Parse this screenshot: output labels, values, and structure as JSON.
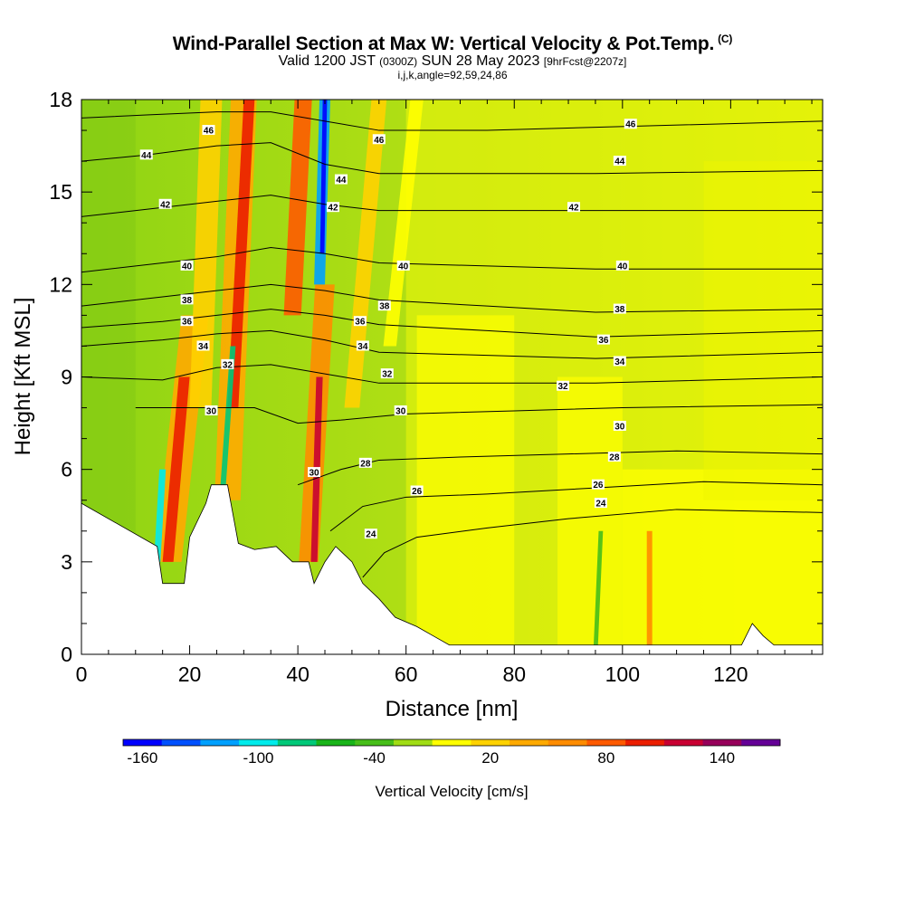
{
  "title": {
    "main": "Wind-Parallel Section at Max W: Vertical Velocity & Pot.Temp.",
    "copyright": "(C)",
    "valid_prefix": "Valid 1200 JST",
    "valid_utc": "(0300Z)",
    "valid_date": "SUN 28 May 2023",
    "forecast": "[9hrFcst@2207z]",
    "indices": "i,j,k,angle=92,59,24,86"
  },
  "chart_data": {
    "type": "heatmap",
    "xlabel": "Distance [nm]",
    "ylabel": "Height [Kft MSL]",
    "xlim": [
      0,
      137
    ],
    "ylim": [
      0,
      18
    ],
    "x_ticks": [
      "0",
      "20",
      "40",
      "60",
      "80",
      "100",
      "120"
    ],
    "y_ticks": [
      "0",
      "3",
      "6",
      "9",
      "12",
      "15",
      "18"
    ],
    "colorbar": {
      "title": "Vertical Velocity [cm/s]",
      "labels": [
        "-160",
        "-100",
        "-40",
        "20",
        "80",
        "140"
      ],
      "colors": [
        "#0000ff",
        "#0050ff",
        "#00a0ff",
        "#00ebeb",
        "#00c878",
        "#19b419",
        "#46be19",
        "#a0dc14",
        "#ffff00",
        "#ffd200",
        "#ffaa00",
        "#ff8c00",
        "#ff5a00",
        "#eb1e00",
        "#c80032",
        "#96005a",
        "#640096"
      ]
    },
    "terrain_profile": [
      [
        0,
        4.9
      ],
      [
        14,
        3.5
      ],
      [
        15,
        2.3
      ],
      [
        19,
        2.3
      ],
      [
        20,
        3.8
      ],
      [
        23,
        4.9
      ],
      [
        24,
        5.5
      ],
      [
        27,
        5.5
      ],
      [
        29,
        3.6
      ],
      [
        32,
        3.4
      ],
      [
        36,
        3.5
      ],
      [
        39,
        3.0
      ],
      [
        42,
        3.0
      ],
      [
        43,
        2.3
      ],
      [
        45,
        3.0
      ],
      [
        47,
        3.5
      ],
      [
        50,
        3.0
      ],
      [
        52,
        2.3
      ],
      [
        55,
        1.8
      ],
      [
        58,
        1.2
      ],
      [
        62,
        0.9
      ],
      [
        65,
        0.6
      ],
      [
        68,
        0.3
      ],
      [
        72,
        0.3
      ],
      [
        122,
        0.3
      ],
      [
        124,
        1.0
      ],
      [
        126,
        0.6
      ],
      [
        128,
        0.3
      ],
      [
        137,
        0.3
      ]
    ],
    "theta_contours": [
      {
        "label": "24",
        "points": [
          [
            52,
            2.5
          ],
          [
            56,
            3.3
          ],
          [
            62,
            3.8
          ],
          [
            75,
            4.1
          ],
          [
            90,
            4.4
          ],
          [
            110,
            4.7
          ],
          [
            137,
            4.6
          ]
        ]
      },
      {
        "label": "26",
        "points": [
          [
            46,
            4.0
          ],
          [
            52,
            4.8
          ],
          [
            60,
            5.1
          ],
          [
            75,
            5.2
          ],
          [
            95,
            5.4
          ],
          [
            115,
            5.6
          ],
          [
            137,
            5.5
          ]
        ]
      },
      {
        "label": "28",
        "points": [
          [
            40,
            5.5
          ],
          [
            48,
            6.0
          ],
          [
            55,
            6.3
          ],
          [
            70,
            6.4
          ],
          [
            90,
            6.5
          ],
          [
            110,
            6.6
          ],
          [
            137,
            6.5
          ]
        ]
      },
      {
        "label": "30",
        "points": [
          [
            10,
            8.0
          ],
          [
            22,
            8.0
          ],
          [
            32,
            8.0
          ],
          [
            40,
            7.5
          ],
          [
            48,
            7.6
          ],
          [
            60,
            7.8
          ],
          [
            80,
            7.9
          ],
          [
            100,
            8.0
          ],
          [
            137,
            8.1
          ]
        ]
      },
      {
        "label": "32",
        "points": [
          [
            0,
            9.0
          ],
          [
            15,
            8.9
          ],
          [
            25,
            9.3
          ],
          [
            35,
            9.4
          ],
          [
            45,
            9.1
          ],
          [
            55,
            8.8
          ],
          [
            75,
            8.8
          ],
          [
            95,
            8.8
          ],
          [
            137,
            9.0
          ]
        ]
      },
      {
        "label": "34",
        "points": [
          [
            0,
            10.0
          ],
          [
            15,
            10.2
          ],
          [
            25,
            10.4
          ],
          [
            35,
            10.5
          ],
          [
            45,
            10.2
          ],
          [
            55,
            9.8
          ],
          [
            75,
            9.7
          ],
          [
            95,
            9.6
          ],
          [
            137,
            9.8
          ]
        ]
      },
      {
        "label": "36",
        "points": [
          [
            0,
            10.6
          ],
          [
            15,
            10.8
          ],
          [
            25,
            11.0
          ],
          [
            35,
            11.2
          ],
          [
            45,
            11.0
          ],
          [
            55,
            10.7
          ],
          [
            75,
            10.5
          ],
          [
            95,
            10.3
          ],
          [
            137,
            10.5
          ]
        ]
      },
      {
        "label": "38",
        "points": [
          [
            0,
            11.3
          ],
          [
            15,
            11.6
          ],
          [
            25,
            11.8
          ],
          [
            35,
            12.0
          ],
          [
            45,
            11.8
          ],
          [
            55,
            11.5
          ],
          [
            75,
            11.3
          ],
          [
            95,
            11.1
          ],
          [
            137,
            11.2
          ]
        ]
      },
      {
        "label": "40",
        "points": [
          [
            0,
            12.4
          ],
          [
            15,
            12.7
          ],
          [
            25,
            12.9
          ],
          [
            35,
            13.2
          ],
          [
            45,
            13.0
          ],
          [
            55,
            12.7
          ],
          [
            75,
            12.6
          ],
          [
            95,
            12.5
          ],
          [
            137,
            12.5
          ]
        ]
      },
      {
        "label": "42",
        "points": [
          [
            0,
            14.2
          ],
          [
            15,
            14.5
          ],
          [
            25,
            14.7
          ],
          [
            35,
            14.9
          ],
          [
            45,
            14.6
          ],
          [
            55,
            14.4
          ],
          [
            75,
            14.4
          ],
          [
            95,
            14.4
          ],
          [
            137,
            14.4
          ]
        ]
      },
      {
        "label": "44",
        "points": [
          [
            0,
            16.0
          ],
          [
            12,
            16.2
          ],
          [
            25,
            16.5
          ],
          [
            35,
            16.6
          ],
          [
            45,
            15.9
          ],
          [
            55,
            15.6
          ],
          [
            75,
            15.6
          ],
          [
            95,
            15.6
          ],
          [
            137,
            15.7
          ]
        ]
      },
      {
        "label": "46",
        "points": [
          [
            0,
            17.4
          ],
          [
            12,
            17.5
          ],
          [
            25,
            17.6
          ],
          [
            35,
            17.6
          ],
          [
            45,
            17.3
          ],
          [
            55,
            17.0
          ],
          [
            75,
            17.0
          ],
          [
            95,
            17.1
          ],
          [
            137,
            17.3
          ]
        ]
      }
    ],
    "theta_label_positions": [
      {
        "label": "46",
        "x": 23.5,
        "y": 17.0
      },
      {
        "label": "44",
        "x": 12,
        "y": 16.2
      },
      {
        "label": "42",
        "x": 15.5,
        "y": 14.6
      },
      {
        "label": "40",
        "x": 19.5,
        "y": 12.6
      },
      {
        "label": "38",
        "x": 19.5,
        "y": 11.5
      },
      {
        "label": "36",
        "x": 19.5,
        "y": 10.8
      },
      {
        "label": "34",
        "x": 22.5,
        "y": 10.0
      },
      {
        "label": "32",
        "x": 27,
        "y": 9.4
      },
      {
        "label": "30",
        "x": 24,
        "y": 7.9
      },
      {
        "label": "46",
        "x": 55,
        "y": 16.7
      },
      {
        "label": "44",
        "x": 48,
        "y": 15.4
      },
      {
        "label": "42",
        "x": 46.5,
        "y": 14.5
      },
      {
        "label": "40",
        "x": 59.5,
        "y": 12.6
      },
      {
        "label": "38",
        "x": 56,
        "y": 11.3
      },
      {
        "label": "36",
        "x": 51.5,
        "y": 10.8
      },
      {
        "label": "34",
        "x": 52,
        "y": 10.0
      },
      {
        "label": "32",
        "x": 56.5,
        "y": 9.1
      },
      {
        "label": "30",
        "x": 59,
        "y": 7.9
      },
      {
        "label": "30",
        "x": 43,
        "y": 5.9
      },
      {
        "label": "28",
        "x": 52.5,
        "y": 6.2
      },
      {
        "label": "26",
        "x": 62,
        "y": 5.3
      },
      {
        "label": "24",
        "x": 53.5,
        "y": 3.9
      },
      {
        "label": "46",
        "x": 101.5,
        "y": 17.2
      },
      {
        "label": "44",
        "x": 99.5,
        "y": 16.0
      },
      {
        "label": "42",
        "x": 91,
        "y": 14.5
      },
      {
        "label": "40",
        "x": 100,
        "y": 12.6
      },
      {
        "label": "38",
        "x": 99.5,
        "y": 11.2
      },
      {
        "label": "36",
        "x": 96.5,
        "y": 10.2
      },
      {
        "label": "34",
        "x": 99.5,
        "y": 9.5
      },
      {
        "label": "32",
        "x": 89,
        "y": 8.7
      },
      {
        "label": "30",
        "x": 99.5,
        "y": 7.4
      },
      {
        "label": "28",
        "x": 98.5,
        "y": 6.4
      },
      {
        "label": "26",
        "x": 95.5,
        "y": 5.5
      },
      {
        "label": "24",
        "x": 96,
        "y": 4.9
      }
    ]
  }
}
